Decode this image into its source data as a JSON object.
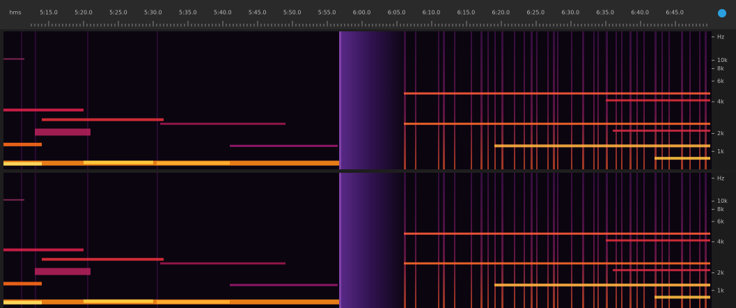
{
  "ruler": {
    "labels": [
      "hms",
      "5:15.0",
      "5:20.0",
      "5:25.0",
      "5:30.0",
      "5:35.0",
      "5:40.0",
      "5:45.0",
      "5:50.0",
      "5:55.0",
      "6:00.0",
      "6:05.0",
      "6:10.0",
      "6:15.0",
      "6:20.0",
      "6:25.0",
      "6:30.0",
      "6:35.0",
      "6:40.0",
      "6:45.0"
    ]
  },
  "channels": [
    {
      "axis_labels": [
        "Hz",
        "10k",
        "8k",
        "6k",
        "4k",
        "2k",
        "1k"
      ]
    },
    {
      "axis_labels": [
        "Hz",
        "10k",
        "8k",
        "6k",
        "4k",
        "2k",
        "1k"
      ]
    }
  ]
}
